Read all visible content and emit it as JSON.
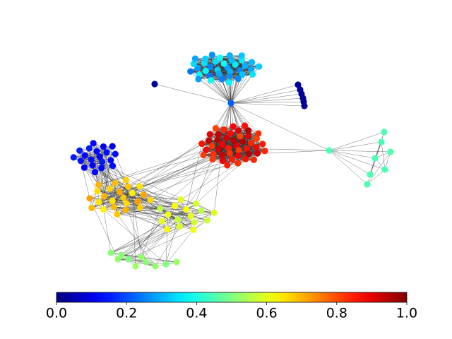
{
  "chart_data": {
    "type": "network",
    "colormap": "jet",
    "clim": [
      0,
      1
    ],
    "cticks": [
      {
        "value": 0,
        "label": "0.0"
      },
      0.2,
      0.4,
      0.6,
      0.8,
      {
        "value": 1,
        "label": "1.0"
      }
    ],
    "groups": [
      [
        0.28,
        0.33,
        0.38,
        0.3,
        0.25,
        0.36,
        0.29,
        0.34,
        0.26,
        0.37,
        0.31,
        0.27,
        0.35,
        0.3,
        0.24,
        0.38,
        0.32,
        0.28,
        0.36,
        0.25,
        0.33,
        0.29,
        0.37,
        0.3,
        0.26,
        0.34,
        0.31,
        0.38,
        0.27,
        0.35,
        0.24,
        0.32,
        0.36,
        0.29,
        0.33,
        0.28
      ],
      [
        0.22
      ],
      [
        0.03
      ],
      [
        0.02,
        0.02,
        0.02,
        0.02,
        0.02,
        0.02
      ],
      [
        0.9,
        0.85,
        0.94,
        0.82,
        0.88,
        0.95,
        0.83,
        0.91,
        0.86,
        0.93,
        0.81,
        0.89,
        0.94,
        0.84,
        0.92,
        0.87,
        0.95,
        0.82,
        0.9,
        0.85,
        0.93,
        0.88,
        0.83,
        0.91,
        0.86,
        0.94,
        0.81,
        0.89,
        0.84,
        0.92,
        0.87,
        0.95,
        0.83,
        0.9,
        0.85,
        0.82,
        0.88,
        0.84,
        0.86,
        0.83,
        0.85,
        0.81,
        0.84,
        0.82,
        0.86
      ],
      [
        0.45,
        0.45,
        0.45,
        0.45,
        0.45,
        0.45,
        0.45,
        0.45
      ],
      [
        0.13,
        0.14,
        0.12,
        0.15,
        0.13,
        0.14,
        0.12,
        0.15,
        0.13,
        0.14,
        0.12,
        0.13,
        0.15,
        0.14,
        0.12,
        0.13,
        0.14,
        0.15,
        0.12,
        0.13
      ],
      [
        0.68,
        0.65,
        0.71,
        0.66,
        0.7,
        0.64,
        0.69,
        0.67,
        0.72,
        0.65,
        0.68,
        0.7,
        0.66,
        0.71,
        0.64,
        0.69,
        0.67,
        0.72,
        0.65,
        0.68,
        0.7,
        0.66,
        0.69,
        0.67
      ],
      [
        0.6,
        0.57,
        0.62,
        0.58,
        0.61,
        0.56,
        0.59,
        0.62,
        0.57,
        0.6,
        0.58,
        0.61,
        0.56,
        0.59,
        0.62,
        0.6
      ],
      [
        0.51,
        0.52,
        0.5,
        0.53,
        0.51,
        0.52,
        0.5,
        0.53,
        0.51,
        0.52
      ]
    ]
  }
}
